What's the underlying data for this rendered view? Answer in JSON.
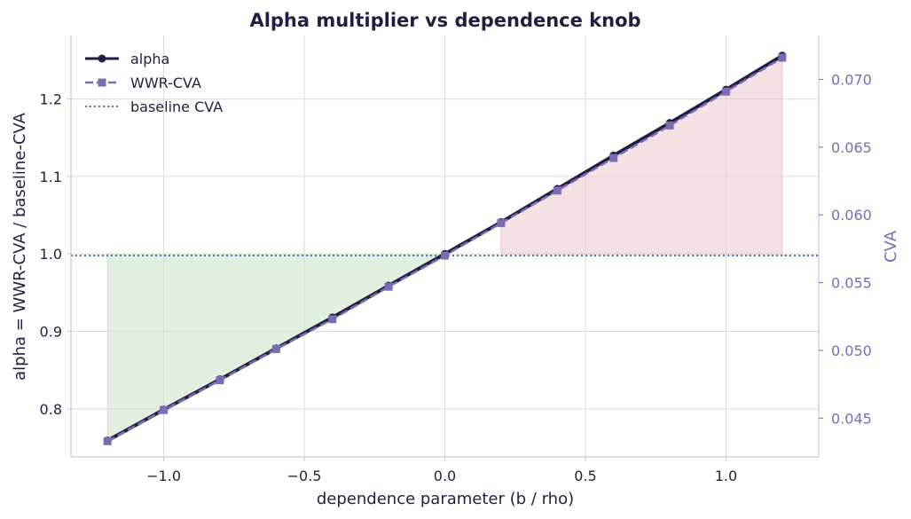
{
  "chart_data": {
    "type": "line",
    "title": "Alpha multiplier vs dependence knob",
    "xlabel": "dependence parameter  (b / rho)",
    "ylabel": "alpha = WWR-CVA / baseline-CVA",
    "ylabel_right": "CVA",
    "xlim": [
      -1.33,
      1.33
    ],
    "ylim": [
      0.738,
      1.282
    ],
    "ylim_right": [
      0.04214,
      0.07324
    ],
    "x_ticks": [
      -1.0,
      -0.5,
      0.0,
      0.5,
      1.0
    ],
    "x_tick_labels": [
      "−1.0",
      "−0.5",
      "0.0",
      "0.5",
      "1.0"
    ],
    "y_ticks": [
      0.8,
      0.9,
      1.0,
      1.1,
      1.2
    ],
    "y_tick_labels": [
      "0.8",
      "0.9",
      "1.0",
      "1.1",
      "1.2"
    ],
    "y_right_ticks": [
      0.045,
      0.05,
      0.055,
      0.06,
      0.065,
      0.07
    ],
    "y_right_tick_labels": [
      "0.045",
      "0.050",
      "0.055",
      "0.060",
      "0.065",
      "0.070"
    ],
    "grid": true,
    "legend_position": "top-left",
    "x": [
      -1.2,
      -1.0,
      -0.8,
      -0.6,
      -0.4,
      -0.2,
      0.0,
      0.2,
      0.4,
      0.6,
      0.8,
      1.0,
      1.2
    ],
    "series": [
      {
        "name": "alpha",
        "axis": "left",
        "style": "solid-circle",
        "color": "#1f2041",
        "values": [
          0.759,
          0.799,
          0.838,
          0.878,
          0.918,
          0.959,
          1.0,
          1.041,
          1.084,
          1.127,
          1.169,
          1.212,
          1.256
        ]
      },
      {
        "name": "WWR-CVA",
        "axis": "right",
        "style": "dashed-square",
        "color": "#7b6bb5",
        "values": [
          0.0433,
          0.0456,
          0.0478,
          0.0501,
          0.0523,
          0.0547,
          0.057,
          0.0594,
          0.0618,
          0.0642,
          0.0666,
          0.0691,
          0.0716
        ]
      },
      {
        "name": "baseline CVA",
        "axis": "right",
        "style": "dotted",
        "color": "#4a67a8",
        "value": 0.057
      }
    ],
    "fills": [
      {
        "from": -1.2,
        "to": 0.0,
        "baseline": 1.0,
        "color": "#c8e2c8",
        "opacity": 0.55
      },
      {
        "from": 0.2,
        "to": 1.2,
        "baseline": 1.0,
        "color": "#e8c4c8",
        "opacity": 0.5
      }
    ],
    "colors": {
      "dark": "#1f2041",
      "purple": "#7b6bb5",
      "baseline_blue": "#4a67a8",
      "grid": "#dcdcdc",
      "spine": "#c8cad4"
    }
  }
}
